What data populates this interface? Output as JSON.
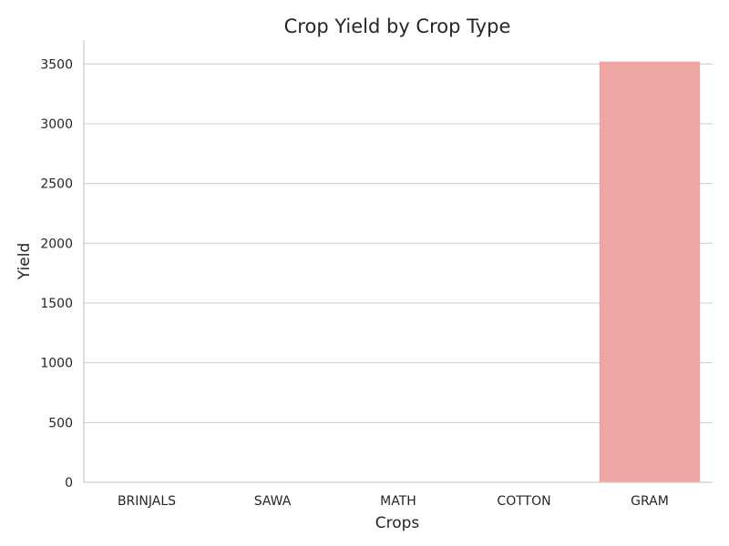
{
  "chart_data": {
    "type": "bar",
    "title": "Crop Yield by Crop Type",
    "xlabel": "Crops",
    "ylabel": "Yield",
    "categories": [
      "BRINJALS",
      "SAWA",
      "MATH",
      "COTTON",
      "GRAM"
    ],
    "values": [
      0,
      0,
      0,
      0,
      3520
    ],
    "ylim": [
      0,
      3700
    ],
    "yticks": [
      0,
      500,
      1000,
      1500,
      2000,
      2500,
      3000,
      3500
    ],
    "ytick_labels": [
      "0",
      "500",
      "1000",
      "1500",
      "2000",
      "2500",
      "3000",
      "3500"
    ],
    "grid": "horizontal",
    "legend": "none",
    "bar_color": "#f0a5a5",
    "grid_color": "#cccccc",
    "axis_color": "#cccccc",
    "text_color": "#262626"
  }
}
